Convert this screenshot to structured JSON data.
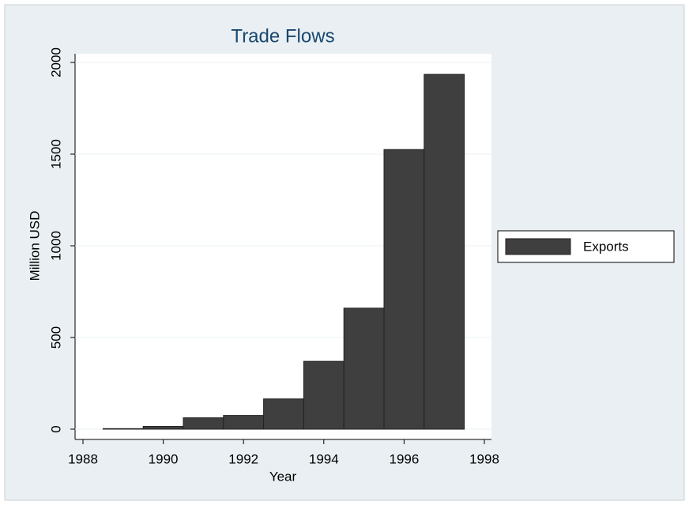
{
  "chart_data": {
    "type": "bar",
    "title": "Trade Flows",
    "x_label": "Year",
    "y_label": "Million USD",
    "x": [
      1989,
      1990,
      1991,
      1992,
      1993,
      1994,
      1995,
      1996,
      1997
    ],
    "series": [
      {
        "name": "Exports",
        "color": "#3f3f3f",
        "values": [
          3,
          15,
          62,
          75,
          165,
          370,
          660,
          1525,
          1935
        ]
      }
    ],
    "xlim": [
      1988,
      1998
    ],
    "xticks": [
      1988,
      1990,
      1992,
      1994,
      1996,
      1998
    ],
    "ylim": [
      0,
      2000
    ],
    "yticks": [
      0,
      500,
      1000,
      1500,
      2000
    ],
    "grid": true,
    "legend": "right"
  }
}
